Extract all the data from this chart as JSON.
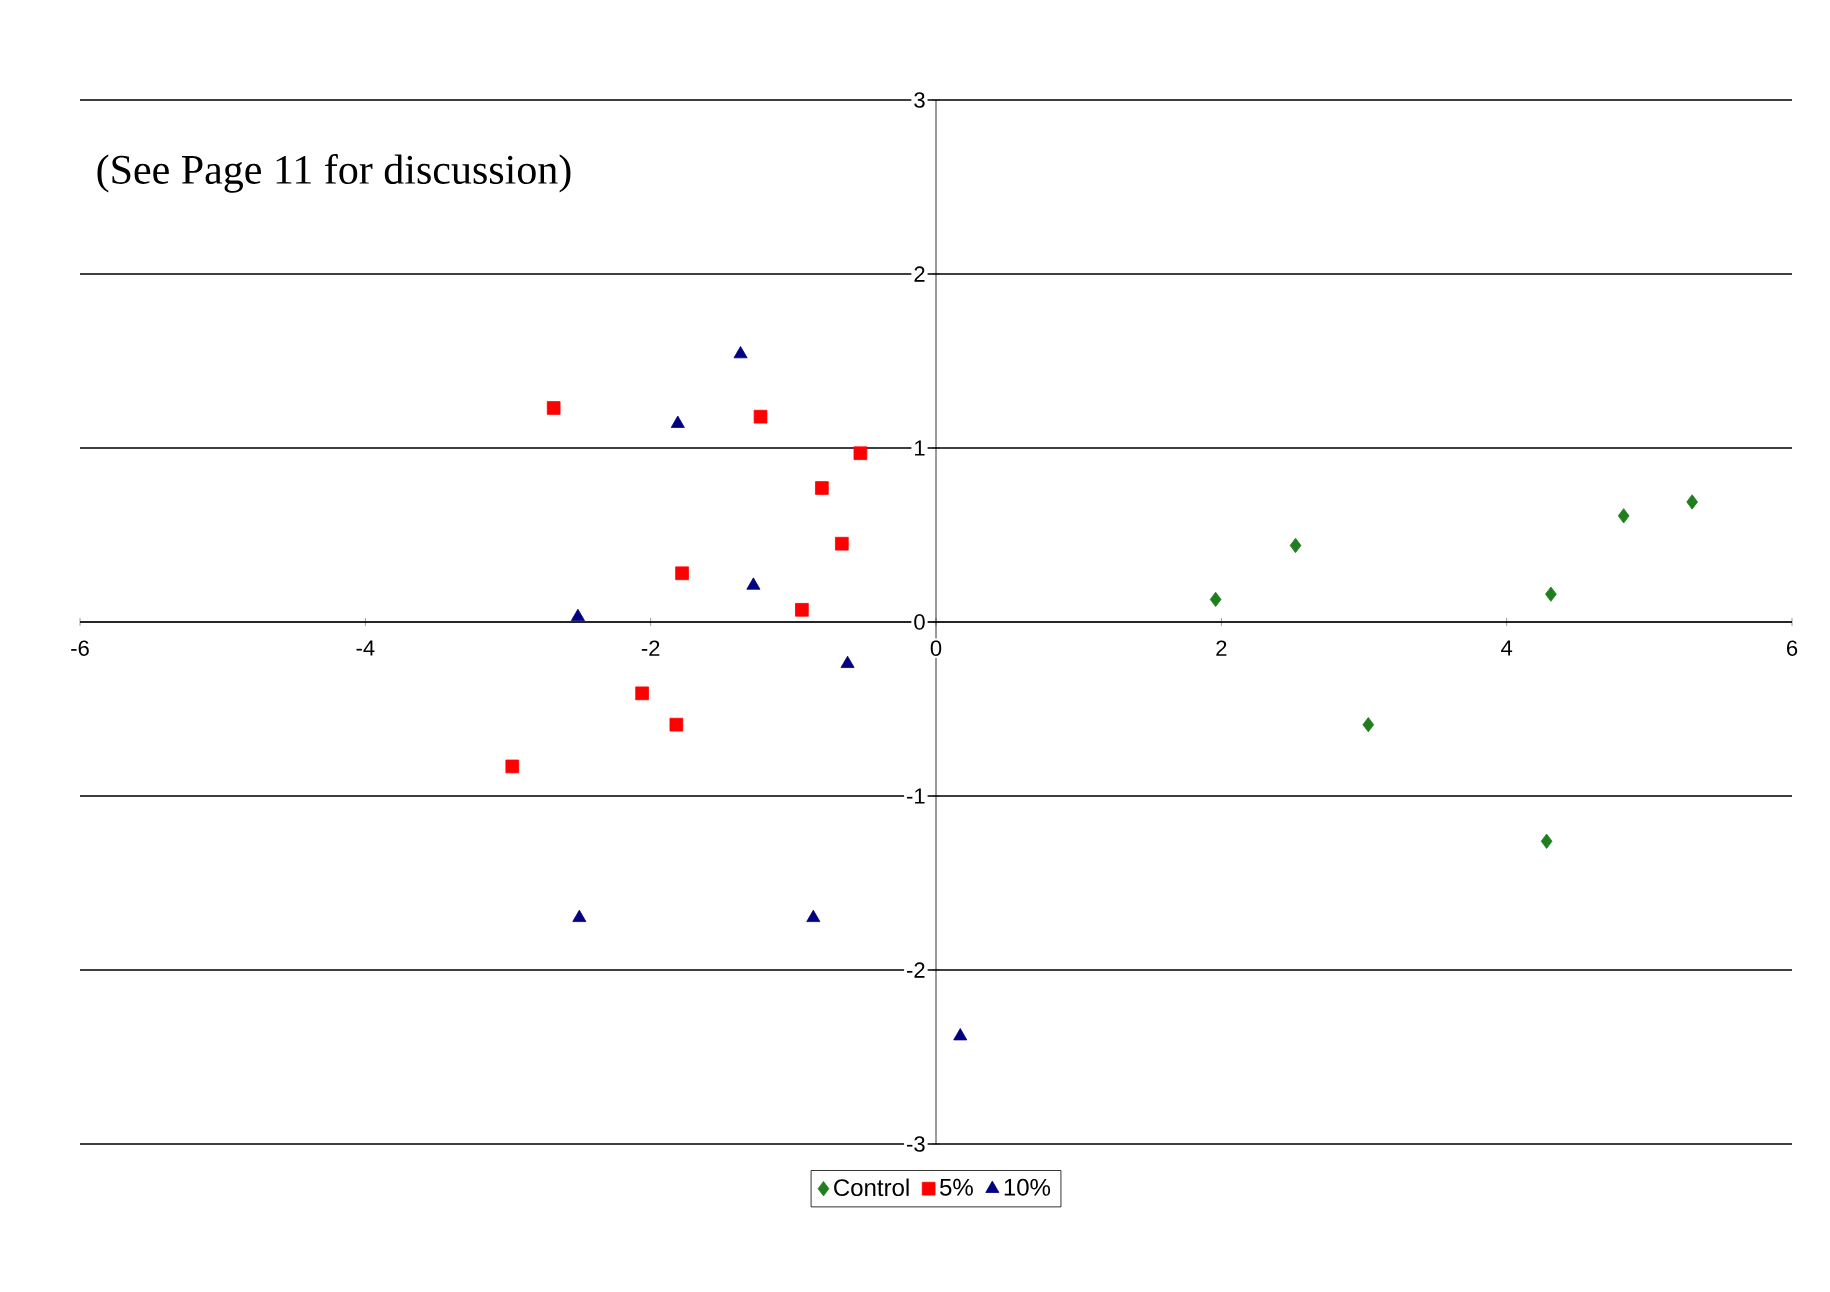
{
  "chart_data": {
    "type": "scatter",
    "annotations": [
      "(See Page 11 for discussion)"
    ],
    "xlim": [
      -6,
      6
    ],
    "ylim": [
      -3,
      3
    ],
    "xticks": [
      -6,
      -4,
      -2,
      0,
      2,
      4,
      6
    ],
    "yticks": [
      -3,
      -2,
      -1,
      0,
      1,
      2,
      3
    ],
    "grid": "y",
    "legend": "bottom",
    "series": [
      {
        "name": "Control",
        "color": "#1f7f1f",
        "marker": "diamond",
        "x": [
          1.96,
          2.52,
          3.03,
          4.31,
          4.28,
          4.82,
          5.3
        ],
        "values": [
          0.13,
          0.44,
          -0.59,
          0.16,
          -1.26,
          0.61,
          0.69
        ]
      },
      {
        "name": "5%",
        "color": "#ff0000",
        "marker": "square",
        "x": [
          -2.68,
          -1.23,
          -0.53,
          -0.8,
          -0.66,
          -1.78,
          -0.94,
          -2.06,
          -1.82,
          -2.97
        ],
        "values": [
          1.23,
          1.18,
          0.97,
          0.77,
          0.45,
          0.28,
          0.07,
          -0.41,
          -0.59,
          -0.83
        ]
      },
      {
        "name": "10%",
        "color": "#000080",
        "marker": "triangle",
        "x": [
          -1.37,
          -1.81,
          -1.28,
          -2.51,
          -0.62,
          -2.5,
          -0.86,
          0.17
        ],
        "values": [
          1.54,
          1.14,
          0.21,
          0.03,
          -0.24,
          -1.7,
          -1.7,
          -2.38
        ]
      }
    ]
  }
}
